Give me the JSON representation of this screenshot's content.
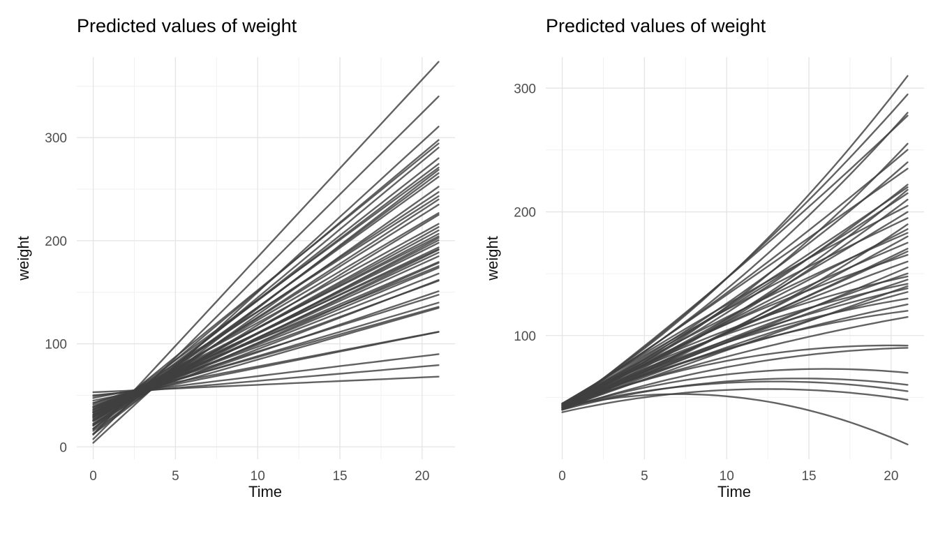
{
  "chart_data": [
    {
      "type": "line",
      "title": "Predicted values of weight",
      "xlabel": "Time",
      "ylabel": "weight",
      "chart": {
        "model": "linear",
        "x_domain": [
          -1,
          22
        ],
        "y_domain": [
          -12,
          378
        ],
        "x_ticks": [
          0,
          5,
          10,
          15,
          20
        ],
        "y_ticks": [
          0,
          100,
          200,
          300
        ],
        "x_minor": [
          2.5,
          7.5,
          12.5,
          17.5
        ],
        "y_minor": [
          50,
          150,
          250,
          350
        ],
        "t_range": [
          0,
          21
        ],
        "line_color": "#3f3f3f",
        "lines": [
          [
            11.9,
            17.22
          ],
          [
            7.5,
            15.83
          ],
          [
            3.9,
            14.61
          ],
          [
            17.7,
            13.33
          ],
          [
            12.7,
            13.22
          ],
          [
            22.6,
            12.94
          ],
          [
            17.5,
            12.5
          ],
          [
            12.2,
            12.22
          ],
          [
            21.2,
            12.06
          ],
          [
            17.1,
            11.83
          ],
          [
            25.8,
            11.67
          ],
          [
            20.5,
            11.5
          ],
          [
            15.5,
            11.28
          ],
          [
            25.4,
            10.56
          ],
          [
            21.8,
            10.39
          ],
          [
            29.6,
            10.17
          ],
          [
            25,
            10
          ],
          [
            21,
            9.72
          ],
          [
            28.6,
            9.44
          ],
          [
            26.6,
            8.89
          ],
          [
            33.2,
            8.72
          ],
          [
            29.2,
            8.61
          ],
          [
            25.4,
            8.44
          ],
          [
            31.7,
            8.33
          ],
          [
            28.9,
            8.17
          ],
          [
            34.9,
            8.06
          ],
          [
            31.2,
            7.94
          ],
          [
            27.8,
            7.78
          ],
          [
            33.7,
            7.61
          ],
          [
            31,
            7.5
          ],
          [
            36.5,
            7.39
          ],
          [
            33.3,
            7.22
          ],
          [
            30.3,
            7.06
          ],
          [
            35.9,
            6.83
          ],
          [
            33.7,
            6.67
          ],
          [
            38.8,
            6.5
          ],
          [
            36.2,
            6.28
          ],
          [
            33.6,
            6.11
          ],
          [
            38.7,
            5.83
          ],
          [
            37.8,
            5.39
          ],
          [
            42.5,
            5
          ],
          [
            40.8,
            4.72
          ],
          [
            39,
            4.56
          ],
          [
            42.6,
            4.44
          ],
          [
            44.9,
            3.17
          ],
          [
            47.4,
            3.06
          ],
          [
            49.2,
            1.94
          ],
          [
            50.1,
            1.39
          ],
          [
            53,
            0.72
          ]
        ]
      }
    },
    {
      "type": "line",
      "title": "Predicted values of weight",
      "xlabel": "Time",
      "ylabel": "weight",
      "chart": {
        "model": "quadratic",
        "x_domain": [
          -1,
          22
        ],
        "y_domain": [
          0,
          325
        ],
        "x_ticks": [
          0,
          5,
          10,
          15,
          20
        ],
        "y_ticks": [
          100,
          200,
          300
        ],
        "x_minor": [
          2.5,
          7.5,
          12.5,
          17.5
        ],
        "y_minor": [
          50,
          150,
          250
        ],
        "t_range": [
          0,
          21
        ],
        "line_color": "#3f3f3f",
        "lines": [
          [
            44,
            8,
            0.222
          ],
          [
            42,
            9,
            0.145
          ],
          [
            45,
            7.5,
            0.176
          ],
          [
            40,
            10,
            0.063
          ],
          [
            44,
            6,
            0.193
          ],
          [
            43,
            8.5,
            0.065
          ],
          [
            45,
            7,
            0.109
          ],
          [
            42,
            9,
            0.009
          ],
          [
            44,
            6.5,
            0.094
          ],
          [
            40,
            8,
            0.027
          ],
          [
            45,
            5.5,
            0.13
          ],
          [
            43,
            7.5,
            0.033
          ],
          [
            42,
            6,
            0.095
          ],
          [
            44,
            8.5,
            -0.04
          ],
          [
            41,
            7,
            0.027
          ],
          [
            45,
            8,
            -0.041
          ],
          [
            43,
            5,
            0.095
          ],
          [
            42,
            6.9,
            -0.002
          ],
          [
            44,
            7.5,
            -0.042
          ],
          [
            40,
            6,
            0.032
          ],
          [
            43,
            7,
            -0.034
          ],
          [
            45,
            5.5,
            0.022
          ],
          [
            42,
            6,
            0
          ],
          [
            44,
            7.2,
            -0.068
          ],
          [
            41,
            6.5,
            -0.04
          ],
          [
            43,
            5,
            0.016
          ],
          [
            40,
            6,
            -0.036
          ],
          [
            44,
            7,
            -0.098
          ],
          [
            42,
            5.5,
            -0.028
          ],
          [
            45,
            6.5,
            -0.09
          ],
          [
            41,
            4.71,
            0
          ],
          [
            43,
            6,
            -0.07
          ],
          [
            40,
            5.5,
            -0.046
          ],
          [
            42,
            6.2,
            -0.096
          ],
          [
            44,
            5,
            -0.054
          ],
          [
            41,
            5.8,
            -0.097
          ],
          [
            43,
            4.5,
            -0.051
          ],
          [
            42,
            5,
            -0.125
          ],
          [
            40,
            4.4,
            -0.096
          ],
          [
            41,
            4,
            -0.125
          ],
          [
            40,
            3.5,
            -0.121
          ],
          [
            42,
            3.2,
            -0.123
          ],
          [
            38,
            3,
            -0.12
          ],
          [
            42,
            3,
            -0.211
          ]
        ]
      }
    }
  ]
}
